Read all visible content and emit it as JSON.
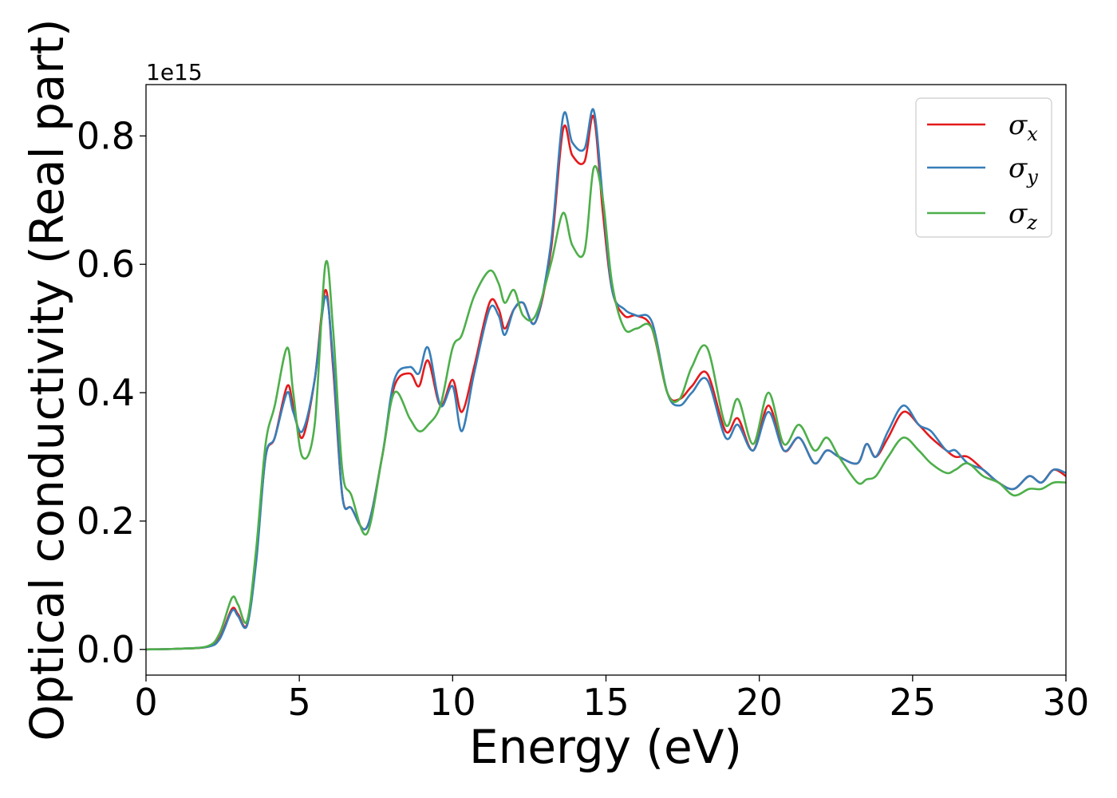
{
  "chart_data": {
    "type": "line",
    "xlabel": "Energy (eV)",
    "ylabel": "Optical conductivity (Real part)",
    "offset_text": "1e15",
    "xlim": [
      0,
      30
    ],
    "ylim": [
      -0.04,
      0.88
    ],
    "xticks": [
      0,
      5,
      10,
      15,
      20,
      25,
      30
    ],
    "yticks": [
      0.0,
      0.2,
      0.4,
      0.6,
      0.8
    ],
    "grid": false,
    "legend_position": "top-right",
    "series": [
      {
        "name": "σx",
        "symbol": "σ",
        "subscript": "x",
        "color": "#e41a1c",
        "x": [
          0,
          1,
          2,
          2.4,
          2.8,
          3.0,
          3.3,
          3.6,
          3.9,
          4.2,
          4.6,
          4.8,
          5.1,
          5.5,
          5.85,
          6.1,
          6.4,
          6.7,
          7.2,
          7.7,
          8.1,
          8.6,
          8.9,
          9.2,
          9.6,
          10.0,
          10.3,
          10.7,
          11.2,
          11.5,
          11.7,
          12.0,
          12.3,
          12.7,
          13.2,
          13.6,
          13.9,
          14.3,
          14.6,
          14.9,
          15.2,
          15.6,
          16.0,
          16.5,
          17.0,
          17.4,
          17.8,
          18.3,
          18.9,
          19.3,
          19.8,
          20.3,
          20.8,
          21.3,
          21.8,
          22.2,
          22.6,
          23.2,
          23.5,
          23.8,
          24.2,
          24.7,
          25.2,
          25.6,
          26.1,
          26.4,
          26.8,
          27.3,
          27.8,
          28.3,
          28.8,
          29.2,
          29.6,
          30.0
        ],
        "values": [
          0.0,
          0.001,
          0.004,
          0.018,
          0.063,
          0.055,
          0.04,
          0.15,
          0.3,
          0.33,
          0.41,
          0.38,
          0.33,
          0.42,
          0.56,
          0.44,
          0.24,
          0.22,
          0.19,
          0.3,
          0.41,
          0.43,
          0.41,
          0.45,
          0.38,
          0.42,
          0.37,
          0.44,
          0.54,
          0.53,
          0.5,
          0.53,
          0.54,
          0.51,
          0.62,
          0.81,
          0.77,
          0.76,
          0.83,
          0.68,
          0.56,
          0.52,
          0.52,
          0.5,
          0.4,
          0.39,
          0.41,
          0.43,
          0.34,
          0.36,
          0.31,
          0.38,
          0.31,
          0.33,
          0.29,
          0.31,
          0.3,
          0.29,
          0.32,
          0.3,
          0.33,
          0.37,
          0.35,
          0.33,
          0.31,
          0.3,
          0.3,
          0.28,
          0.26,
          0.25,
          0.27,
          0.26,
          0.28,
          0.27
        ]
      },
      {
        "name": "σy",
        "symbol": "σ",
        "subscript": "y",
        "color": "#377eb8",
        "x": [
          0,
          1,
          2,
          2.4,
          2.8,
          3.0,
          3.3,
          3.6,
          3.9,
          4.2,
          4.6,
          4.8,
          5.1,
          5.5,
          5.85,
          6.1,
          6.4,
          6.7,
          7.2,
          7.7,
          8.1,
          8.6,
          8.9,
          9.2,
          9.6,
          10.0,
          10.3,
          10.7,
          11.2,
          11.5,
          11.7,
          12.0,
          12.3,
          12.7,
          13.2,
          13.6,
          13.9,
          14.3,
          14.6,
          14.9,
          15.2,
          15.6,
          16.0,
          16.5,
          17.0,
          17.4,
          17.8,
          18.3,
          18.9,
          19.3,
          19.8,
          20.3,
          20.8,
          21.3,
          21.8,
          22.2,
          22.6,
          23.2,
          23.5,
          23.8,
          24.2,
          24.7,
          25.2,
          25.6,
          26.1,
          26.4,
          26.8,
          27.3,
          27.8,
          28.3,
          28.8,
          29.2,
          29.6,
          30.0
        ],
        "values": [
          0.0,
          0.001,
          0.004,
          0.016,
          0.06,
          0.052,
          0.038,
          0.14,
          0.3,
          0.33,
          0.4,
          0.37,
          0.34,
          0.42,
          0.55,
          0.45,
          0.24,
          0.22,
          0.19,
          0.3,
          0.42,
          0.44,
          0.43,
          0.47,
          0.38,
          0.41,
          0.34,
          0.43,
          0.53,
          0.52,
          0.49,
          0.53,
          0.54,
          0.51,
          0.63,
          0.83,
          0.79,
          0.78,
          0.84,
          0.7,
          0.56,
          0.53,
          0.52,
          0.51,
          0.4,
          0.38,
          0.4,
          0.42,
          0.33,
          0.35,
          0.31,
          0.37,
          0.31,
          0.33,
          0.29,
          0.31,
          0.3,
          0.29,
          0.32,
          0.3,
          0.34,
          0.38,
          0.35,
          0.34,
          0.31,
          0.31,
          0.29,
          0.28,
          0.26,
          0.25,
          0.27,
          0.26,
          0.28,
          0.275
        ]
      },
      {
        "name": "σz",
        "symbol": "σ",
        "subscript": "z",
        "color": "#4daf4a",
        "x": [
          0,
          1,
          2,
          2.4,
          2.8,
          3.0,
          3.3,
          3.6,
          3.9,
          4.2,
          4.6,
          4.8,
          5.1,
          5.5,
          5.85,
          6.1,
          6.4,
          6.7,
          7.2,
          7.7,
          8.1,
          8.6,
          8.9,
          9.2,
          9.6,
          10.0,
          10.3,
          10.7,
          11.2,
          11.5,
          11.7,
          12.0,
          12.3,
          12.7,
          13.2,
          13.6,
          13.9,
          14.3,
          14.6,
          14.9,
          15.2,
          15.6,
          16.0,
          16.5,
          17.0,
          17.4,
          17.8,
          18.3,
          18.9,
          19.3,
          19.8,
          20.3,
          20.8,
          21.3,
          21.8,
          22.2,
          22.6,
          23.2,
          23.5,
          23.8,
          24.2,
          24.7,
          25.2,
          25.6,
          26.1,
          26.4,
          26.8,
          27.3,
          27.8,
          28.3,
          28.8,
          29.2,
          29.6,
          30.0
        ],
        "values": [
          0.0,
          0.001,
          0.005,
          0.025,
          0.08,
          0.07,
          0.045,
          0.16,
          0.32,
          0.38,
          0.47,
          0.4,
          0.3,
          0.35,
          0.6,
          0.5,
          0.28,
          0.24,
          0.18,
          0.3,
          0.4,
          0.36,
          0.34,
          0.35,
          0.38,
          0.47,
          0.49,
          0.55,
          0.59,
          0.57,
          0.54,
          0.56,
          0.52,
          0.52,
          0.6,
          0.68,
          0.63,
          0.62,
          0.75,
          0.7,
          0.57,
          0.5,
          0.5,
          0.5,
          0.4,
          0.39,
          0.44,
          0.47,
          0.35,
          0.39,
          0.32,
          0.4,
          0.32,
          0.35,
          0.31,
          0.33,
          0.3,
          0.26,
          0.265,
          0.27,
          0.3,
          0.33,
          0.31,
          0.29,
          0.275,
          0.28,
          0.29,
          0.27,
          0.26,
          0.24,
          0.25,
          0.25,
          0.26,
          0.26
        ]
      }
    ]
  }
}
